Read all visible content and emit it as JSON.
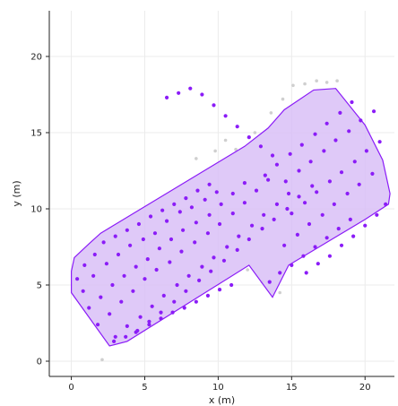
{
  "chart_data": {
    "type": "scatter",
    "xlabel": "x (m)",
    "ylabel": "y (m)",
    "xlim": [
      -1.5,
      22
    ],
    "ylim": [
      -1,
      23
    ],
    "x_ticks": [
      0,
      5,
      10,
      15,
      20
    ],
    "x_tick_labels": [
      "0",
      "5",
      "10",
      "15",
      "20"
    ],
    "y_ticks": [
      0,
      5,
      10,
      15,
      20
    ],
    "y_tick_labels": [
      "0",
      "5",
      "10",
      "15",
      "20"
    ],
    "grid": true,
    "colors": {
      "points": "#8b1cf7",
      "region_fill": "#d9bff7",
      "region_edge": "#8b1cf7",
      "faded_points": "#cfcfcf"
    },
    "region_polygon": {
      "x": [
        0.0,
        0.0,
        0.2,
        1.2,
        2.0,
        11.8,
        13.4,
        14.5,
        16.5,
        18.0,
        20.0,
        21.2,
        21.7,
        21.6,
        20.0,
        14.8,
        13.7,
        12.1,
        3.8,
        2.6,
        0.0
      ],
      "y": [
        4.5,
        5.9,
        6.8,
        7.7,
        8.4,
        14.1,
        15.3,
        16.5,
        17.8,
        17.9,
        15.5,
        13.2,
        11.0,
        10.3,
        9.3,
        6.3,
        4.2,
        6.3,
        1.3,
        1.0,
        4.5
      ]
    },
    "series": [
      {
        "name": "",
        "points": {
          "x": [
            0.4,
            0.9,
            1.6,
            2.2,
            3.0,
            3.8,
            4.6,
            5.4,
            6.2,
            7.0,
            7.8,
            8.6,
            9.4,
            0.8,
            1.5,
            2.4,
            3.2,
            4.0,
            4.9,
            5.7,
            6.5,
            7.4,
            8.2,
            9.1,
            9.9,
            1.2,
            2.0,
            2.8,
            3.6,
            4.4,
            5.2,
            6.0,
            6.8,
            7.6,
            8.5,
            9.4,
            10.2,
            11.0,
            11.8,
            1.8,
            2.6,
            3.4,
            4.2,
            5.0,
            5.8,
            6.7,
            7.5,
            8.4,
            9.3,
            10.1,
            11.0,
            11.8,
            12.6,
            13.4,
            3.0,
            3.8,
            4.7,
            5.5,
            6.3,
            7.2,
            8.0,
            8.9,
            9.7,
            10.6,
            11.4,
            12.3,
            13.1,
            14.0,
            14.8,
            4.4,
            5.3,
            6.1,
            7.0,
            7.8,
            8.7,
            9.5,
            10.4,
            11.3,
            12.1,
            13.0,
            13.8,
            14.7,
            15.5,
            16.4,
            13.2,
            14.0,
            14.9,
            15.7,
            16.6,
            17.4,
            18.3,
            19.1,
            14.6,
            15.5,
            16.3,
            17.2,
            18.0,
            18.9,
            19.7,
            20.6,
            15.0,
            15.9,
            16.7,
            17.6,
            18.4,
            19.3,
            20.1,
            21.0,
            14.5,
            15.4,
            16.2,
            17.1,
            17.9,
            18.8,
            19.6,
            20.5,
            2.9,
            3.7,
            4.5,
            5.3,
            6.1,
            6.9,
            7.7,
            8.5,
            9.3,
            10.1,
            10.9,
            16.0,
            16.8,
            17.6,
            18.4,
            19.2,
            20.0,
            20.8,
            21.4,
            13.5,
            14.2,
            15.0,
            15.8,
            16.6,
            17.4,
            18.2,
            19.0,
            6.5,
            7.3,
            8.1,
            8.9,
            9.7,
            10.5,
            11.3,
            12.1,
            12.9,
            13.7
          ],
          "y": [
            5.4,
            6.3,
            7.0,
            7.8,
            8.2,
            8.6,
            9.0,
            9.5,
            9.9,
            10.3,
            10.7,
            11.2,
            11.6,
            4.6,
            5.6,
            6.4,
            7.0,
            7.6,
            8.0,
            8.4,
            9.2,
            9.8,
            10.1,
            10.6,
            11.1,
            3.5,
            4.2,
            5.0,
            5.6,
            6.2,
            6.7,
            7.4,
            8.0,
            8.6,
            9.1,
            9.6,
            10.3,
            11.0,
            11.7,
            2.4,
            3.1,
            3.9,
            4.6,
            5.4,
            6.0,
            6.5,
            7.2,
            7.8,
            8.4,
            9.0,
            9.7,
            10.4,
            11.2,
            11.9,
            1.6,
            2.3,
            2.9,
            3.6,
            4.3,
            5.0,
            5.6,
            6.2,
            6.8,
            7.5,
            8.2,
            8.9,
            9.6,
            10.3,
            11.0,
            1.9,
            2.6,
            3.2,
            3.9,
            4.6,
            5.3,
            5.9,
            6.6,
            7.3,
            8.0,
            8.7,
            9.3,
            10.0,
            10.8,
            11.5,
            12.2,
            12.9,
            13.6,
            14.2,
            14.9,
            15.6,
            16.3,
            17.0,
            11.8,
            12.5,
            13.1,
            13.8,
            14.5,
            15.1,
            15.8,
            16.4,
            9.7,
            10.4,
            11.1,
            11.8,
            12.4,
            13.1,
            13.8,
            14.4,
            7.6,
            8.3,
            9.0,
            9.6,
            10.3,
            11.0,
            11.6,
            12.3,
            1.3,
            1.6,
            2.0,
            2.4,
            2.8,
            3.2,
            3.5,
            3.9,
            4.3,
            4.7,
            5.0,
            5.8,
            6.4,
            6.9,
            7.6,
            8.2,
            8.9,
            9.6,
            10.3,
            5.2,
            5.8,
            6.3,
            6.9,
            7.5,
            8.1,
            8.7,
            9.3,
            17.3,
            17.6,
            17.9,
            17.5,
            16.8,
            16.1,
            15.4,
            14.7,
            14.1,
            13.5
          ]
        }
      }
    ],
    "faded_points": {
      "x": [
        2.1,
        11.2,
        12.5,
        13.6,
        14.4,
        15.1,
        15.9,
        16.7,
        17.4,
        18.1,
        12.0,
        10.5,
        9.8,
        13.0,
        14.2,
        8.5
      ],
      "y": [
        0.1,
        13.9,
        15.0,
        16.3,
        17.2,
        18.1,
        18.2,
        18.4,
        18.3,
        18.4,
        6.0,
        14.5,
        13.8,
        5.2,
        4.5,
        13.3
      ]
    }
  }
}
